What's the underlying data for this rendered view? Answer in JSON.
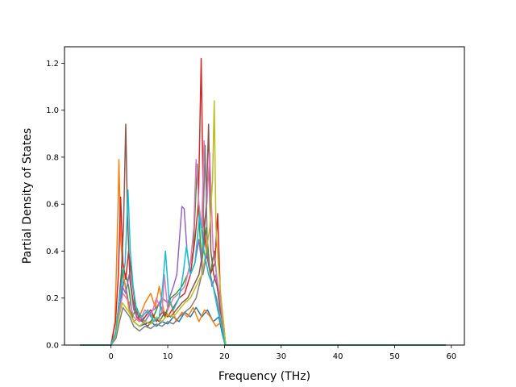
{
  "chart_data": {
    "type": "line",
    "title": "",
    "xlabel": "Frequency (THz)",
    "ylabel": "Partial Density of States",
    "xlim": [
      -8.2,
      62.3
    ],
    "ylim": [
      0,
      1.27
    ],
    "xticks": [
      0,
      10,
      20,
      30,
      40,
      50,
      60
    ],
    "xtick_labels": [
      "0",
      "10",
      "20",
      "30",
      "40",
      "50",
      "60"
    ],
    "yticks": [
      0.0,
      0.2,
      0.4,
      0.6,
      0.8,
      1.0,
      1.2
    ],
    "ytick_labels": [
      "0.0",
      "0.2",
      "0.4",
      "0.6",
      "0.8",
      "1.0",
      "1.2"
    ],
    "grid": false,
    "legend": "none",
    "colors": [
      "#1f77b4",
      "#ff7f0e",
      "#2ca02c",
      "#d62728",
      "#9467bd",
      "#8c564b",
      "#e377c2",
      "#7f7f7f",
      "#bcbd22",
      "#17becf"
    ],
    "series": [
      {
        "color": "#1f77b4",
        "x": [
          -5.5,
          0,
          0.8,
          1.3,
          1.8,
          2.3,
          2.8,
          3.3,
          4,
          5,
          6,
          7,
          8,
          9,
          10,
          11,
          12,
          13,
          14,
          15,
          16,
          17,
          18,
          19,
          19.6,
          20.1,
          25,
          35,
          45,
          59
        ],
        "y": [
          0,
          0,
          0.04,
          0.12,
          0.2,
          0.28,
          0.22,
          0.15,
          0.1,
          0.08,
          0.09,
          0.1,
          0.08,
          0.1,
          0.09,
          0.12,
          0.1,
          0.14,
          0.12,
          0.16,
          0.12,
          0.15,
          0.1,
          0.12,
          0.05,
          0,
          0,
          0,
          0,
          0
        ]
      },
      {
        "color": "#ff7f0e",
        "x": [
          -5.5,
          0,
          0.7,
          1.2,
          1.4,
          1.7,
          2.2,
          2.7,
          3.2,
          4,
          5,
          6,
          7,
          7.8,
          8.5,
          9.5,
          10.5,
          11.5,
          12.5,
          13.5,
          14.5,
          15.5,
          16.5,
          17.5,
          18.5,
          19.5,
          20.1,
          30,
          45,
          59
        ],
        "y": [
          0,
          0,
          0.1,
          0.55,
          0.79,
          0.45,
          0.3,
          0.22,
          0.15,
          0.1,
          0.12,
          0.18,
          0.22,
          0.16,
          0.25,
          0.12,
          0.18,
          0.1,
          0.14,
          0.12,
          0.16,
          0.1,
          0.15,
          0.12,
          0.08,
          0.1,
          0,
          0,
          0,
          0
        ]
      },
      {
        "color": "#2ca02c",
        "x": [
          -5.5,
          0,
          0.9,
          1.5,
          2.1,
          2.6,
          3.1,
          3.8,
          4.5,
          5.5,
          6.5,
          7.5,
          8.5,
          9.5,
          10.5,
          11.5,
          12.5,
          13.5,
          14.5,
          15.2,
          15.6,
          16,
          16.8,
          17.5,
          18.2,
          19,
          19.8,
          20.2,
          40,
          59
        ],
        "y": [
          0,
          0,
          0.06,
          0.2,
          0.32,
          0.3,
          0.25,
          0.12,
          0.16,
          0.1,
          0.14,
          0.12,
          0.18,
          0.12,
          0.2,
          0.22,
          0.25,
          0.3,
          0.4,
          0.77,
          0.5,
          0.35,
          0.5,
          0.3,
          0.4,
          0.2,
          0.1,
          0,
          0,
          0
        ]
      },
      {
        "color": "#d62728",
        "x": [
          -5.5,
          0,
          0.8,
          1.3,
          1.7,
          2.1,
          2.6,
          3.1,
          3.6,
          4.2,
          5,
          6,
          7,
          8,
          9,
          10,
          11,
          12,
          13,
          14,
          14.8,
          15.4,
          15.9,
          16.3,
          16.8,
          17.5,
          18.3,
          18.8,
          19.3,
          19.8,
          20.2,
          35,
          59
        ],
        "y": [
          0,
          0,
          0.1,
          0.3,
          0.63,
          0.35,
          0.28,
          0.4,
          0.3,
          0.18,
          0.1,
          0.12,
          0.15,
          0.1,
          0.14,
          0.12,
          0.16,
          0.2,
          0.22,
          0.3,
          0.45,
          0.6,
          1.22,
          0.55,
          0.4,
          0.3,
          0.35,
          0.56,
          0.2,
          0.1,
          0,
          0,
          0
        ]
      },
      {
        "color": "#9467bd",
        "x": [
          -5.5,
          0,
          0.8,
          1.4,
          2,
          2.6,
          3.2,
          4,
          5,
          6,
          7,
          8,
          9,
          10,
          11,
          11.6,
          12,
          12.5,
          12.9,
          13.4,
          14,
          14.8,
          15.5,
          16.2,
          17,
          17.8,
          18.5,
          19.2,
          19.8,
          20.2,
          40,
          59
        ],
        "y": [
          0,
          0,
          0.05,
          0.18,
          0.25,
          0.22,
          0.3,
          0.15,
          0.12,
          0.1,
          0.14,
          0.16,
          0.2,
          0.18,
          0.25,
          0.3,
          0.43,
          0.59,
          0.58,
          0.4,
          0.3,
          0.35,
          0.45,
          0.3,
          0.4,
          0.25,
          0.3,
          0.15,
          0.08,
          0,
          0,
          0
        ]
      },
      {
        "color": "#8c564b",
        "x": [
          -5.5,
          0,
          0.8,
          1.3,
          1.8,
          2.2,
          2.6,
          2.9,
          3.3,
          3.8,
          4.5,
          5.5,
          6.5,
          7.5,
          8.5,
          9.5,
          10.5,
          11.5,
          12.5,
          13.5,
          14.5,
          15.5,
          16.2,
          16.8,
          17.2,
          17.6,
          18.1,
          18.7,
          19.3,
          19.9,
          20.2,
          40,
          59
        ],
        "y": [
          0,
          0,
          0.04,
          0.15,
          0.3,
          0.5,
          0.94,
          0.55,
          0.3,
          0.2,
          0.12,
          0.1,
          0.08,
          0.12,
          0.1,
          0.14,
          0.12,
          0.15,
          0.18,
          0.2,
          0.25,
          0.3,
          0.4,
          0.6,
          0.94,
          0.4,
          0.3,
          0.25,
          0.15,
          0.06,
          0,
          0,
          0
        ]
      },
      {
        "color": "#e377c2",
        "x": [
          -5.5,
          0,
          0.9,
          1.5,
          2.1,
          2.7,
          3.3,
          4,
          5,
          6,
          7,
          8,
          9,
          9.4,
          10,
          11,
          12,
          13,
          14,
          14.6,
          15,
          15.5,
          16,
          16.4,
          16.9,
          17.4,
          18,
          18.6,
          19.2,
          19.8,
          20.2,
          40,
          59
        ],
        "y": [
          0,
          0,
          0.05,
          0.15,
          0.22,
          0.2,
          0.18,
          0.12,
          0.1,
          0.15,
          0.12,
          0.2,
          0.14,
          0.3,
          0.15,
          0.2,
          0.22,
          0.25,
          0.35,
          0.5,
          0.79,
          0.6,
          0.5,
          0.87,
          0.6,
          0.82,
          0.4,
          0.3,
          0.2,
          0.08,
          0,
          0,
          0
        ]
      },
      {
        "color": "#7f7f7f",
        "x": [
          -5.5,
          0,
          0.9,
          1.5,
          2.1,
          2.7,
          3.3,
          4,
          5,
          6,
          7,
          8,
          9,
          10,
          11,
          12,
          13,
          14,
          15,
          16,
          16.6,
          17,
          17.5,
          18,
          18.6,
          19.2,
          19.8,
          20.2,
          40,
          59
        ],
        "y": [
          0,
          0,
          0.03,
          0.1,
          0.16,
          0.14,
          0.12,
          0.08,
          0.06,
          0.08,
          0.07,
          0.09,
          0.08,
          0.1,
          0.09,
          0.12,
          0.14,
          0.16,
          0.2,
          0.3,
          0.85,
          0.4,
          0.3,
          0.25,
          0.2,
          0.12,
          0.05,
          0,
          0,
          0
        ]
      },
      {
        "color": "#bcbd22",
        "x": [
          -5.5,
          0,
          0.8,
          1.4,
          2,
          2.6,
          3.2,
          4,
          5,
          6,
          7,
          8,
          9,
          10,
          11,
          12,
          13,
          14,
          15,
          16,
          16.8,
          17.4,
          17.9,
          18.2,
          18.5,
          18.9,
          19.4,
          19.9,
          20.2,
          40,
          59
        ],
        "y": [
          0,
          0,
          0.04,
          0.12,
          0.18,
          0.16,
          0.14,
          0.1,
          0.08,
          0.1,
          0.09,
          0.12,
          0.1,
          0.13,
          0.12,
          0.15,
          0.18,
          0.2,
          0.25,
          0.3,
          0.4,
          0.5,
          0.7,
          1.04,
          0.5,
          0.35,
          0.2,
          0.08,
          0,
          0,
          0
        ]
      },
      {
        "color": "#17becf",
        "x": [
          -5.5,
          0,
          0.8,
          1.4,
          2,
          2.5,
          3,
          3.4,
          3.9,
          4.5,
          5.5,
          6.5,
          7.5,
          8.5,
          9.1,
          9.6,
          10.2,
          11,
          12,
          12.7,
          13.3,
          14,
          14.8,
          15.6,
          16.4,
          17.2,
          18,
          18.8,
          19.5,
          20.1,
          40,
          59
        ],
        "y": [
          0,
          0,
          0.05,
          0.18,
          0.28,
          0.35,
          0.66,
          0.4,
          0.25,
          0.15,
          0.12,
          0.15,
          0.1,
          0.12,
          0.25,
          0.4,
          0.2,
          0.15,
          0.2,
          0.3,
          0.42,
          0.3,
          0.35,
          0.55,
          0.4,
          0.3,
          0.25,
          0.15,
          0.08,
          0,
          0,
          0
        ]
      }
    ]
  }
}
